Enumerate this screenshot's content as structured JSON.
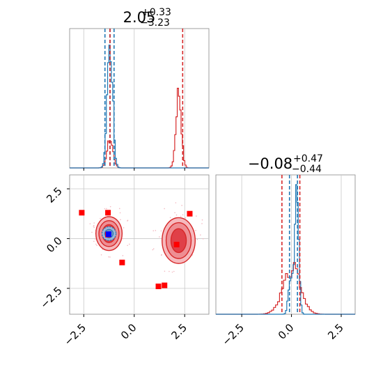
{
  "colors": {
    "blue": "#1f77b4",
    "red": "#d62728",
    "marker_red": "#ff0000",
    "marker_blue": "#0000ff",
    "frame": "#888888",
    "grid": "#c8c8c8"
  },
  "titles": {
    "top_left": {
      "main": "2.05",
      "sup": "+0.33",
      "sub": "−3.23"
    },
    "bottom_right": {
      "main": "−0.08",
      "sup": "+0.47",
      "sub": "−0.44"
    }
  },
  "chart_data": {
    "type": "corner-plot",
    "grid": true,
    "x_ticks": [
      "−2.5",
      "0.0",
      "2.5"
    ],
    "y_ticks": [
      "2.5",
      "0.0",
      "−2.5"
    ],
    "param1_range": [
      -3.2,
      3.7
    ],
    "param2_range": [
      -3.8,
      3.2
    ],
    "hist1": {
      "xlim": [
        -3.2,
        3.7
      ],
      "blue_quantiles": [
        -1.45,
        -1.2,
        -1.0
      ],
      "red_quantiles": [
        -1.2,
        2.4
      ],
      "blue_peaks": [
        {
          "center": -1.2,
          "sigma": 0.13,
          "height": 1.0
        }
      ],
      "red_peaks": [
        {
          "center": -1.2,
          "sigma": 0.15,
          "height": 0.22
        },
        {
          "center": 2.2,
          "sigma": 0.13,
          "height": 0.6
        }
      ]
    },
    "hist2": {
      "xlim": [
        -3.8,
        3.2
      ],
      "blue_quantiles": [
        -0.1,
        0.3
      ],
      "red_quantiles": [
        -0.48,
        0.42
      ],
      "blue_peaks": [
        {
          "center": 0.26,
          "sigma": 0.1,
          "height": 1.0
        },
        {
          "center": -0.05,
          "sigma": 0.1,
          "height": 0.3
        }
      ],
      "red_peaks": [
        {
          "center": 0.0,
          "sigma": 0.45,
          "height": 0.32
        },
        {
          "center": 0.25,
          "sigma": 0.12,
          "height": 0.1
        }
      ]
    },
    "scatter": {
      "clusters": [
        {
          "cx": -1.25,
          "cy": 0.25,
          "radii": [
            [
              0.65,
              0.85
            ],
            [
              0.5,
              0.65
            ],
            [
              0.33,
              0.45
            ]
          ]
        },
        {
          "cx": 2.2,
          "cy": -0.1,
          "radii": [
            [
              0.82,
              1.15
            ],
            [
              0.62,
              0.9
            ],
            [
              0.38,
              0.6
            ]
          ]
        }
      ],
      "blue_cluster": {
        "cx": -1.25,
        "cy": 0.25,
        "rx": 0.35,
        "ry": 0.35
      },
      "red_markers": [
        [
          -2.6,
          1.3
        ],
        [
          -1.3,
          1.3
        ],
        [
          -0.6,
          -1.2
        ],
        [
          1.2,
          -2.4
        ],
        [
          1.5,
          -2.35
        ],
        [
          2.75,
          1.25
        ],
        [
          2.1,
          -0.3
        ],
        [
          -1.3,
          0.2
        ]
      ],
      "blue_markers": [
        [
          -1.27,
          0.22
        ]
      ]
    }
  }
}
